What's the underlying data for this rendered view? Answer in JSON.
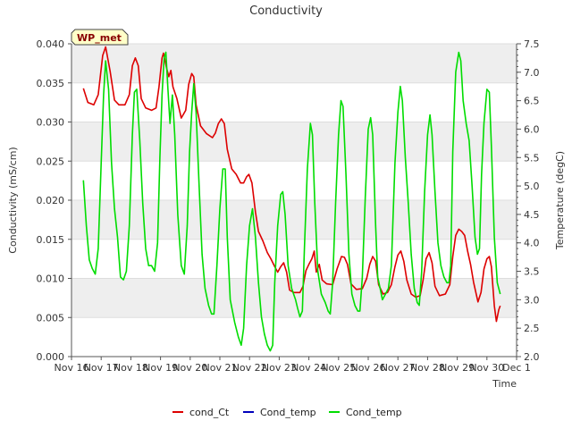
{
  "chart_data": {
    "type": "line",
    "title": "Conductivity",
    "badge": "WP_met",
    "xlabel": "Time",
    "ylabel_left": "Conductivity (mS/cm)",
    "ylabel_right": "Temperature (degC)",
    "x_range": [
      16,
      31
    ],
    "ylim_left": [
      0.0,
      0.04
    ],
    "ylim_right": [
      2.0,
      7.5
    ],
    "x_ticks": [
      {
        "x": 16,
        "label": "Nov 16"
      },
      {
        "x": 17,
        "label": "Nov 17"
      },
      {
        "x": 18,
        "label": "Nov 18"
      },
      {
        "x": 19,
        "label": "Nov 19"
      },
      {
        "x": 20,
        "label": "Nov 20"
      },
      {
        "x": 21,
        "label": "Nov 21"
      },
      {
        "x": 22,
        "label": "Nov 22"
      },
      {
        "x": 23,
        "label": "Nov 23"
      },
      {
        "x": 24,
        "label": "Nov 24"
      },
      {
        "x": 25,
        "label": "Nov 25"
      },
      {
        "x": 26,
        "label": "Nov 26"
      },
      {
        "x": 27,
        "label": "Nov 27"
      },
      {
        "x": 28,
        "label": "Nov 28"
      },
      {
        "x": 29,
        "label": "Nov 29"
      },
      {
        "x": 30,
        "label": "Nov 30"
      },
      {
        "x": 31,
        "label": "Dec 1"
      }
    ],
    "y_ticks_left": [
      {
        "v": 0.0,
        "label": "0.000"
      },
      {
        "v": 0.005,
        "label": "0.005"
      },
      {
        "v": 0.01,
        "label": "0.010"
      },
      {
        "v": 0.015,
        "label": "0.015"
      },
      {
        "v": 0.02,
        "label": "0.020"
      },
      {
        "v": 0.025,
        "label": "0.025"
      },
      {
        "v": 0.03,
        "label": "0.030"
      },
      {
        "v": 0.035,
        "label": "0.035"
      },
      {
        "v": 0.04,
        "label": "0.040"
      }
    ],
    "y_ticks_right": [
      {
        "v": 2.0,
        "label": "2.0"
      },
      {
        "v": 2.5,
        "label": "2.5"
      },
      {
        "v": 3.0,
        "label": "3.0"
      },
      {
        "v": 3.5,
        "label": "3.5"
      },
      {
        "v": 4.0,
        "label": "4.0"
      },
      {
        "v": 4.5,
        "label": "4.5"
      },
      {
        "v": 5.0,
        "label": "5.0"
      },
      {
        "v": 5.5,
        "label": "5.5"
      },
      {
        "v": 6.0,
        "label": "6.0"
      },
      {
        "v": 6.5,
        "label": "6.5"
      },
      {
        "v": 7.0,
        "label": "7.0"
      },
      {
        "v": 7.5,
        "label": "7.5"
      }
    ],
    "grid_bands": true,
    "legend_position": "bottom",
    "series": [
      {
        "name": "cond_Ct",
        "axis": "left",
        "color": "#dd0000",
        "points": [
          [
            16.4,
            0.0343
          ],
          [
            16.55,
            0.0325
          ],
          [
            16.75,
            0.0322
          ],
          [
            16.9,
            0.0335
          ],
          [
            17.05,
            0.0385
          ],
          [
            17.15,
            0.0396
          ],
          [
            17.3,
            0.0365
          ],
          [
            17.45,
            0.0328
          ],
          [
            17.6,
            0.0322
          ],
          [
            17.8,
            0.0322
          ],
          [
            17.95,
            0.0335
          ],
          [
            18.05,
            0.0372
          ],
          [
            18.15,
            0.0382
          ],
          [
            18.25,
            0.0372
          ],
          [
            18.35,
            0.033
          ],
          [
            18.5,
            0.0318
          ],
          [
            18.7,
            0.0315
          ],
          [
            18.85,
            0.0318
          ],
          [
            18.95,
            0.0345
          ],
          [
            19.05,
            0.0382
          ],
          [
            19.1,
            0.0388
          ],
          [
            19.2,
            0.037
          ],
          [
            19.28,
            0.0358
          ],
          [
            19.35,
            0.0366
          ],
          [
            19.42,
            0.0345
          ],
          [
            19.55,
            0.033
          ],
          [
            19.7,
            0.0305
          ],
          [
            19.85,
            0.0315
          ],
          [
            19.95,
            0.0348
          ],
          [
            20.05,
            0.0362
          ],
          [
            20.12,
            0.0358
          ],
          [
            20.2,
            0.0322
          ],
          [
            20.35,
            0.0295
          ],
          [
            20.55,
            0.0285
          ],
          [
            20.75,
            0.028
          ],
          [
            20.85,
            0.0286
          ],
          [
            20.95,
            0.0298
          ],
          [
            21.05,
            0.0304
          ],
          [
            21.15,
            0.0298
          ],
          [
            21.25,
            0.0265
          ],
          [
            21.4,
            0.024
          ],
          [
            21.55,
            0.0233
          ],
          [
            21.7,
            0.0222
          ],
          [
            21.8,
            0.0222
          ],
          [
            21.9,
            0.023
          ],
          [
            21.98,
            0.0233
          ],
          [
            22.08,
            0.0222
          ],
          [
            22.2,
            0.0185
          ],
          [
            22.3,
            0.016
          ],
          [
            22.45,
            0.0148
          ],
          [
            22.6,
            0.0133
          ],
          [
            22.72,
            0.0125
          ],
          [
            22.85,
            0.0115
          ],
          [
            22.95,
            0.0108
          ],
          [
            23.05,
            0.0115
          ],
          [
            23.15,
            0.012
          ],
          [
            23.25,
            0.0108
          ],
          [
            23.35,
            0.0085
          ],
          [
            23.5,
            0.0082
          ],
          [
            23.7,
            0.0082
          ],
          [
            23.8,
            0.009
          ],
          [
            23.9,
            0.011
          ],
          [
            24.0,
            0.0118
          ],
          [
            24.1,
            0.0125
          ],
          [
            24.18,
            0.0135
          ],
          [
            24.25,
            0.0108
          ],
          [
            24.35,
            0.0118
          ],
          [
            24.45,
            0.0098
          ],
          [
            24.6,
            0.0093
          ],
          [
            24.8,
            0.0092
          ],
          [
            24.95,
            0.0112
          ],
          [
            25.1,
            0.0128
          ],
          [
            25.2,
            0.0127
          ],
          [
            25.3,
            0.0118
          ],
          [
            25.42,
            0.0093
          ],
          [
            25.6,
            0.0086
          ],
          [
            25.8,
            0.0087
          ],
          [
            25.95,
            0.01
          ],
          [
            26.05,
            0.0118
          ],
          [
            26.15,
            0.0128
          ],
          [
            26.25,
            0.0122
          ],
          [
            26.35,
            0.0092
          ],
          [
            26.5,
            0.008
          ],
          [
            26.65,
            0.0082
          ],
          [
            26.78,
            0.0092
          ],
          [
            26.9,
            0.0115
          ],
          [
            27.0,
            0.013
          ],
          [
            27.1,
            0.0135
          ],
          [
            27.2,
            0.0122
          ],
          [
            27.3,
            0.0098
          ],
          [
            27.45,
            0.008
          ],
          [
            27.6,
            0.0076
          ],
          [
            27.75,
            0.0078
          ],
          [
            27.85,
            0.0098
          ],
          [
            27.95,
            0.0125
          ],
          [
            28.05,
            0.0133
          ],
          [
            28.15,
            0.012
          ],
          [
            28.25,
            0.009
          ],
          [
            28.4,
            0.0078
          ],
          [
            28.6,
            0.008
          ],
          [
            28.75,
            0.0092
          ],
          [
            28.85,
            0.0128
          ],
          [
            28.95,
            0.0155
          ],
          [
            29.05,
            0.0163
          ],
          [
            29.15,
            0.016
          ],
          [
            29.25,
            0.0155
          ],
          [
            29.35,
            0.0135
          ],
          [
            29.45,
            0.0118
          ],
          [
            29.55,
            0.0095
          ],
          [
            29.7,
            0.007
          ],
          [
            29.8,
            0.0082
          ],
          [
            29.9,
            0.0112
          ],
          [
            30.0,
            0.0125
          ],
          [
            30.08,
            0.0128
          ],
          [
            30.15,
            0.0115
          ],
          [
            30.25,
            0.0065
          ],
          [
            30.32,
            0.0045
          ],
          [
            30.4,
            0.006
          ],
          [
            30.45,
            0.0065
          ]
        ]
      },
      {
        "name": "Cond_temp",
        "axis": "right",
        "color": "#0000bb",
        "points": []
      },
      {
        "name": "Cond_temp",
        "axis": "right",
        "color": "#00dd00",
        "points": [
          [
            16.4,
            5.1
          ],
          [
            16.5,
            4.3
          ],
          [
            16.6,
            3.7
          ],
          [
            16.7,
            3.55
          ],
          [
            16.8,
            3.45
          ],
          [
            16.9,
            3.9
          ],
          [
            17.0,
            5.4
          ],
          [
            17.08,
            6.6
          ],
          [
            17.15,
            7.2
          ],
          [
            17.25,
            6.7
          ],
          [
            17.35,
            5.4
          ],
          [
            17.45,
            4.6
          ],
          [
            17.55,
            4.1
          ],
          [
            17.65,
            3.4
          ],
          [
            17.75,
            3.35
          ],
          [
            17.85,
            3.5
          ],
          [
            17.95,
            4.3
          ],
          [
            18.05,
            5.9
          ],
          [
            18.12,
            6.65
          ],
          [
            18.2,
            6.7
          ],
          [
            18.3,
            5.8
          ],
          [
            18.4,
            4.7
          ],
          [
            18.5,
            3.9
          ],
          [
            18.6,
            3.6
          ],
          [
            18.7,
            3.6
          ],
          [
            18.8,
            3.5
          ],
          [
            18.9,
            4.0
          ],
          [
            18.98,
            5.5
          ],
          [
            19.05,
            6.6
          ],
          [
            19.12,
            7.25
          ],
          [
            19.18,
            7.35
          ],
          [
            19.25,
            6.7
          ],
          [
            19.32,
            6.1
          ],
          [
            19.4,
            6.6
          ],
          [
            19.48,
            5.9
          ],
          [
            19.58,
            4.5
          ],
          [
            19.7,
            3.6
          ],
          [
            19.8,
            3.45
          ],
          [
            19.9,
            4.3
          ],
          [
            19.98,
            5.6
          ],
          [
            20.05,
            6.3
          ],
          [
            20.12,
            6.8
          ],
          [
            20.2,
            6.3
          ],
          [
            20.3,
            5.0
          ],
          [
            20.4,
            3.8
          ],
          [
            20.5,
            3.2
          ],
          [
            20.62,
            2.9
          ],
          [
            20.72,
            2.75
          ],
          [
            20.8,
            2.75
          ],
          [
            20.9,
            3.6
          ],
          [
            21.0,
            4.6
          ],
          [
            21.1,
            5.3
          ],
          [
            21.18,
            5.3
          ],
          [
            21.25,
            4.1
          ],
          [
            21.35,
            3.0
          ],
          [
            21.5,
            2.6
          ],
          [
            21.62,
            2.35
          ],
          [
            21.72,
            2.2
          ],
          [
            21.8,
            2.5
          ],
          [
            21.9,
            3.6
          ],
          [
            22.0,
            4.3
          ],
          [
            22.1,
            4.6
          ],
          [
            22.2,
            4.1
          ],
          [
            22.3,
            3.3
          ],
          [
            22.4,
            2.7
          ],
          [
            22.5,
            2.4
          ],
          [
            22.6,
            2.2
          ],
          [
            22.7,
            2.1
          ],
          [
            22.78,
            2.2
          ],
          [
            22.85,
            3.3
          ],
          [
            22.95,
            4.3
          ],
          [
            23.05,
            4.85
          ],
          [
            23.12,
            4.9
          ],
          [
            23.2,
            4.5
          ],
          [
            23.3,
            3.6
          ],
          [
            23.42,
            3.2
          ],
          [
            23.55,
            3.0
          ],
          [
            23.62,
            2.85
          ],
          [
            23.7,
            2.7
          ],
          [
            23.78,
            2.8
          ],
          [
            23.85,
            3.9
          ],
          [
            23.95,
            5.3
          ],
          [
            24.05,
            6.1
          ],
          [
            24.12,
            5.9
          ],
          [
            24.2,
            4.7
          ],
          [
            24.3,
            3.5
          ],
          [
            24.42,
            3.1
          ],
          [
            24.55,
            2.95
          ],
          [
            24.65,
            2.8
          ],
          [
            24.72,
            2.75
          ],
          [
            24.8,
            3.3
          ],
          [
            24.9,
            4.7
          ],
          [
            25.0,
            5.9
          ],
          [
            25.08,
            6.5
          ],
          [
            25.15,
            6.4
          ],
          [
            25.25,
            5.2
          ],
          [
            25.35,
            3.8
          ],
          [
            25.45,
            3.1
          ],
          [
            25.55,
            2.9
          ],
          [
            25.65,
            2.8
          ],
          [
            25.72,
            2.8
          ],
          [
            25.8,
            3.4
          ],
          [
            25.9,
            4.8
          ],
          [
            26.0,
            6.0
          ],
          [
            26.08,
            6.2
          ],
          [
            26.15,
            5.9
          ],
          [
            26.25,
            4.3
          ],
          [
            26.32,
            3.4
          ],
          [
            26.4,
            3.2
          ],
          [
            26.48,
            3.0
          ],
          [
            26.58,
            3.1
          ],
          [
            26.68,
            3.2
          ],
          [
            26.78,
            3.6
          ],
          [
            26.9,
            5.4
          ],
          [
            27.0,
            6.3
          ],
          [
            27.08,
            6.75
          ],
          [
            27.15,
            6.5
          ],
          [
            27.25,
            5.5
          ],
          [
            27.35,
            4.7
          ],
          [
            27.45,
            3.8
          ],
          [
            27.55,
            3.2
          ],
          [
            27.65,
            2.95
          ],
          [
            27.72,
            2.9
          ],
          [
            27.8,
            3.5
          ],
          [
            27.9,
            4.9
          ],
          [
            28.0,
            5.9
          ],
          [
            28.08,
            6.25
          ],
          [
            28.15,
            5.9
          ],
          [
            28.25,
            4.9
          ],
          [
            28.35,
            4.0
          ],
          [
            28.45,
            3.6
          ],
          [
            28.55,
            3.4
          ],
          [
            28.65,
            3.3
          ],
          [
            28.72,
            3.3
          ],
          [
            28.78,
            3.6
          ],
          [
            28.85,
            5.6
          ],
          [
            28.95,
            7.0
          ],
          [
            29.05,
            7.35
          ],
          [
            29.12,
            7.2
          ],
          [
            29.2,
            6.5
          ],
          [
            29.3,
            6.1
          ],
          [
            29.4,
            5.8
          ],
          [
            29.5,
            5.0
          ],
          [
            29.6,
            4.1
          ],
          [
            29.68,
            3.8
          ],
          [
            29.75,
            3.9
          ],
          [
            29.82,
            5.2
          ],
          [
            29.9,
            6.1
          ],
          [
            30.0,
            6.7
          ],
          [
            30.08,
            6.65
          ],
          [
            30.15,
            5.7
          ],
          [
            30.25,
            4.1
          ],
          [
            30.35,
            3.3
          ],
          [
            30.45,
            3.1
          ]
        ]
      }
    ]
  }
}
